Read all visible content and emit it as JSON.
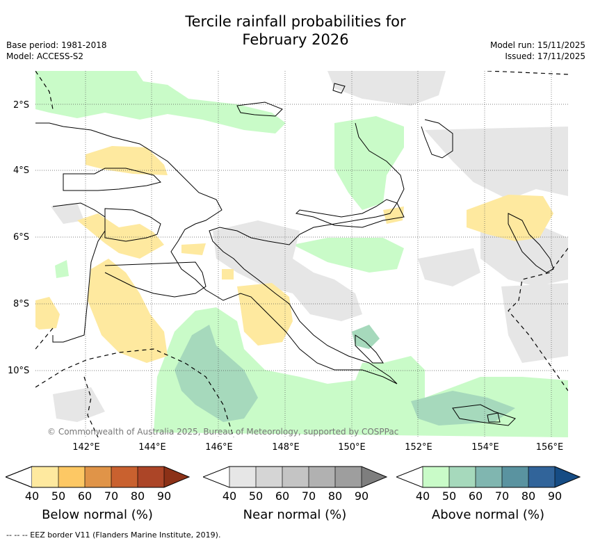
{
  "title_line1": "Tercile rainfall probabilities for",
  "title_line2": "February 2026",
  "base_period": "Base period: 1981-2018",
  "model": "Model: ACCESS-S2",
  "model_run": "Model run: 15/11/2025",
  "issued": "Issued: 17/11/2025",
  "lat_labels": [
    "2°S",
    "4°S",
    "6°S",
    "8°S",
    "10°S"
  ],
  "lon_labels": [
    "142°E",
    "144°E",
    "146°E",
    "148°E",
    "150°E",
    "152°E",
    "154°E",
    "156°E"
  ],
  "copyright": "© Commonwealth of Australia 2025, Bureau of Meteorology, supported by COSPPac",
  "colorbars": [
    {
      "title": "Below normal (%)",
      "ticks": [
        "40",
        "50",
        "60",
        "70",
        "80",
        "90"
      ],
      "colors": [
        "#ffffff",
        "#fee99f",
        "#fdc864",
        "#e09448",
        "#c9612f",
        "#ac4527",
        "#8c3117"
      ]
    },
    {
      "title": "Near normal (%)",
      "ticks": [
        "40",
        "50",
        "60",
        "70",
        "80",
        "90"
      ],
      "colors": [
        "#ffffff",
        "#e6e6e6",
        "#d5d5d5",
        "#c4c4c4",
        "#b1b1b1",
        "#9e9e9e",
        "#7e7e7e"
      ]
    },
    {
      "title": "Above normal (%)",
      "ticks": [
        "40",
        "50",
        "60",
        "70",
        "80",
        "90"
      ],
      "colors": [
        "#ffffff",
        "#c9fbc8",
        "#a6d9bc",
        "#80b6b0",
        "#5a93a0",
        "#31649a",
        "#164c84"
      ]
    }
  ],
  "footer": "--  --  -- EEZ border V11 (Flanders Marine Institute, 2019)."
}
